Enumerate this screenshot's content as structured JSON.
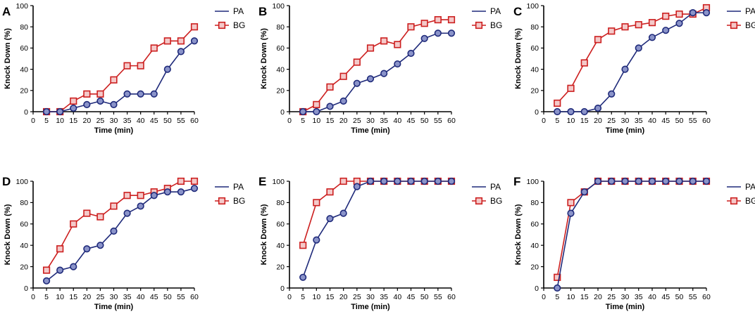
{
  "chart_data": [
    {
      "type": "line",
      "panel": "A",
      "x": [
        0,
        5,
        10,
        15,
        20,
        25,
        30,
        35,
        40,
        45,
        50,
        55,
        60
      ],
      "xticks": [
        0,
        5,
        10,
        15,
        20,
        25,
        30,
        35,
        40,
        45,
        50,
        55,
        60
      ],
      "yticks": [
        0,
        20,
        40,
        60,
        80,
        100
      ],
      "xlim": [
        0,
        60
      ],
      "ylim": [
        0,
        100
      ],
      "xlabel": "Time (min)",
      "ylabel": "Knock Down (%)",
      "series": [
        {
          "name": "PA",
          "color": "#1f2a7a",
          "marker": "circle",
          "x": [
            5,
            10,
            15,
            20,
            25,
            30,
            35,
            40,
            45,
            50,
            55,
            60
          ],
          "values": [
            0,
            0,
            3.3,
            6.7,
            10,
            6.7,
            16.7,
            16.7,
            16.7,
            40,
            56.7,
            66.7
          ]
        },
        {
          "name": "BG",
          "color": "#cc1f1f",
          "marker": "square",
          "x": [
            5,
            10,
            15,
            20,
            25,
            30,
            35,
            40,
            45,
            50,
            55,
            60
          ],
          "values": [
            0,
            0,
            10,
            16.7,
            16.7,
            30,
            43.3,
            43.3,
            60,
            66.7,
            66.7,
            80
          ]
        }
      ]
    },
    {
      "type": "line",
      "panel": "B",
      "x": [
        0,
        5,
        10,
        15,
        20,
        25,
        30,
        35,
        40,
        45,
        50,
        55,
        60
      ],
      "xticks": [
        0,
        5,
        10,
        15,
        20,
        25,
        30,
        35,
        40,
        45,
        50,
        55,
        60
      ],
      "yticks": [
        0,
        20,
        40,
        60,
        80,
        100
      ],
      "xlim": [
        0,
        60
      ],
      "ylim": [
        0,
        100
      ],
      "xlabel": "Time (min)",
      "ylabel": "Knock Down (%)",
      "series": [
        {
          "name": "PA",
          "color": "#1f2a7a",
          "marker": "circle",
          "x": [
            5,
            10,
            15,
            20,
            25,
            30,
            35,
            40,
            45,
            50,
            55,
            60
          ],
          "values": [
            0,
            0,
            5,
            10,
            26.7,
            31,
            36,
            45,
            55,
            69,
            74,
            74
          ]
        },
        {
          "name": "BG",
          "color": "#cc1f1f",
          "marker": "square",
          "x": [
            5,
            10,
            15,
            20,
            25,
            30,
            35,
            40,
            45,
            50,
            55,
            60
          ],
          "values": [
            0,
            6.7,
            23.3,
            33.3,
            46.7,
            60,
            66.7,
            63.3,
            80,
            83.3,
            86.7,
            86.7
          ]
        }
      ]
    },
    {
      "type": "line",
      "panel": "C",
      "x": [
        0,
        5,
        10,
        15,
        20,
        25,
        30,
        35,
        40,
        45,
        50,
        55,
        60
      ],
      "xticks": [
        0,
        5,
        10,
        15,
        20,
        25,
        30,
        35,
        40,
        45,
        50,
        55,
        60
      ],
      "yticks": [
        0,
        20,
        40,
        60,
        80,
        100
      ],
      "xlim": [
        0,
        60
      ],
      "ylim": [
        0,
        100
      ],
      "xlabel": "Time (min)",
      "ylabel": "Knock Down (%)",
      "series": [
        {
          "name": "PA",
          "color": "#1f2a7a",
          "marker": "circle",
          "x": [
            5,
            10,
            15,
            20,
            25,
            30,
            35,
            40,
            45,
            50,
            55,
            60
          ],
          "values": [
            0,
            0,
            0,
            3.3,
            16.7,
            40,
            60,
            70,
            76.7,
            83.3,
            93.3,
            93.3
          ]
        },
        {
          "name": "BG",
          "color": "#cc1f1f",
          "marker": "square",
          "x": [
            5,
            10,
            15,
            20,
            25,
            30,
            35,
            40,
            45,
            50,
            55,
            60
          ],
          "values": [
            8,
            22,
            46,
            68,
            76,
            80,
            82,
            84,
            90,
            92,
            92,
            98
          ]
        }
      ]
    },
    {
      "type": "line",
      "panel": "D",
      "x": [
        0,
        5,
        10,
        15,
        20,
        25,
        30,
        35,
        40,
        45,
        50,
        55,
        60
      ],
      "xticks": [
        0,
        5,
        10,
        15,
        20,
        25,
        30,
        35,
        40,
        45,
        50,
        55,
        60
      ],
      "yticks": [
        0,
        20,
        40,
        60,
        80,
        100
      ],
      "xlim": [
        0,
        60
      ],
      "ylim": [
        0,
        100
      ],
      "xlabel": "Time (min)",
      "ylabel": "Knock Down (%)",
      "series": [
        {
          "name": "PA",
          "color": "#1f2a7a",
          "marker": "circle",
          "x": [
            5,
            10,
            15,
            20,
            25,
            30,
            35,
            40,
            45,
            50,
            55,
            60
          ],
          "values": [
            6.7,
            16.7,
            20,
            36.7,
            40,
            53.3,
            70,
            76.7,
            86.7,
            90,
            90,
            93.3
          ]
        },
        {
          "name": "BG",
          "color": "#cc1f1f",
          "marker": "square",
          "x": [
            5,
            10,
            15,
            20,
            25,
            30,
            35,
            40,
            45,
            50,
            55,
            60
          ],
          "values": [
            16.7,
            36.7,
            60,
            70,
            66.7,
            76.7,
            86.7,
            86.7,
            90,
            93.3,
            100,
            100
          ]
        }
      ]
    },
    {
      "type": "line",
      "panel": "E",
      "x": [
        0,
        5,
        10,
        15,
        20,
        25,
        30,
        35,
        40,
        45,
        50,
        55,
        60
      ],
      "xticks": [
        0,
        5,
        10,
        15,
        20,
        25,
        30,
        35,
        40,
        45,
        50,
        55,
        60
      ],
      "yticks": [
        0,
        20,
        40,
        60,
        80,
        100
      ],
      "xlim": [
        0,
        60
      ],
      "ylim": [
        0,
        100
      ],
      "xlabel": "Time (min)",
      "ylabel": "Knock Down (%)",
      "series": [
        {
          "name": "PA",
          "color": "#1f2a7a",
          "marker": "circle",
          "x": [
            5,
            10,
            15,
            20,
            25,
            30,
            35,
            40,
            45,
            50,
            55,
            60
          ],
          "values": [
            10,
            45,
            65,
            70,
            95,
            100,
            100,
            100,
            100,
            100,
            100,
            100
          ]
        },
        {
          "name": "BG",
          "color": "#cc1f1f",
          "marker": "square",
          "x": [
            5,
            10,
            15,
            20,
            25,
            30,
            35,
            40,
            45,
            50,
            55,
            60
          ],
          "values": [
            40,
            80,
            90,
            100,
            100,
            100,
            100,
            100,
            100,
            100,
            100,
            100
          ]
        }
      ]
    },
    {
      "type": "line",
      "panel": "F",
      "x": [
        0,
        5,
        10,
        15,
        20,
        25,
        30,
        35,
        40,
        45,
        50,
        55,
        60
      ],
      "xticks": [
        0,
        5,
        10,
        15,
        20,
        25,
        30,
        35,
        40,
        45,
        50,
        55,
        60
      ],
      "yticks": [
        0,
        20,
        40,
        60,
        80,
        100
      ],
      "xlim": [
        0,
        60
      ],
      "ylim": [
        0,
        100
      ],
      "xlabel": "Time (min)",
      "ylabel": "Knock Down (%)",
      "series": [
        {
          "name": "PA",
          "color": "#1f2a7a",
          "marker": "circle",
          "x": [
            5,
            10,
            15,
            20,
            25,
            30,
            35,
            40,
            45,
            50,
            55,
            60
          ],
          "values": [
            0,
            70,
            90,
            100,
            100,
            100,
            100,
            100,
            100,
            100,
            100,
            100
          ]
        },
        {
          "name": "BG",
          "color": "#cc1f1f",
          "marker": "square",
          "x": [
            5,
            10,
            15,
            20,
            25,
            30,
            35,
            40,
            45,
            50,
            55,
            60
          ],
          "values": [
            10,
            80,
            90,
            100,
            100,
            100,
            100,
            100,
            100,
            100,
            100,
            100
          ]
        }
      ]
    }
  ]
}
